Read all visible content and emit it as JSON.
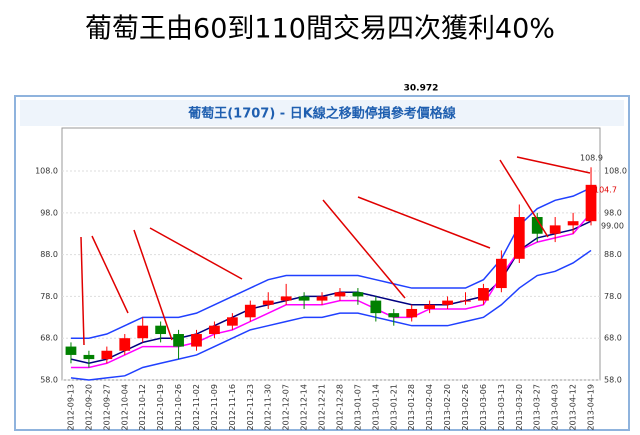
{
  "page_title": "葡萄王由60到110間交易四次獲利40%",
  "top_value": "30.972",
  "chart_data": {
    "type": "candlestick",
    "title": "葡萄王(1707) - 日K線之移動停損參考價格線",
    "x": [
      "2012-09-13",
      "2012-09-20",
      "2012-09-27",
      "2012-10-04",
      "2012-10-12",
      "2012-10-19",
      "2012-10-26",
      "2012-11-02",
      "2012-11-09",
      "2012-11-16",
      "2012-11-23",
      "2012-11-30",
      "2012-12-07",
      "2012-12-14",
      "2012-12-21",
      "2012-12-28",
      "2013-01-07",
      "2013-01-14",
      "2013-01-21",
      "2013-01-28",
      "2013-02-04",
      "2013-02-20",
      "2013-02-26",
      "2013-03-06",
      "2013-03-13",
      "2013-03-20",
      "2013-03-27",
      "2013-04-03",
      "2013-04-12",
      "2013-04-19"
    ],
    "open": [
      66,
      64,
      63,
      65,
      68,
      71,
      69,
      66,
      69,
      71,
      73,
      76,
      77,
      78,
      77,
      78,
      79,
      77,
      74,
      73,
      75,
      76,
      77,
      77,
      80,
      87,
      97,
      93,
      95,
      96
    ],
    "high": [
      67,
      65,
      66,
      69,
      73,
      72,
      70,
      70,
      72,
      74,
      77,
      79,
      81,
      79,
      79,
      80,
      80,
      78,
      75,
      76,
      77,
      78,
      79,
      81,
      89,
      100,
      98,
      97,
      98,
      108.9
    ],
    "low": [
      62,
      61,
      62,
      64,
      67,
      67,
      63,
      65,
      68,
      70,
      72,
      75,
      76,
      75,
      76,
      77,
      76,
      72,
      71,
      72,
      74,
      75,
      76,
      76,
      79,
      86,
      91,
      91,
      93,
      95
    ],
    "close": [
      64,
      63,
      65,
      68,
      71,
      69,
      66,
      69,
      71,
      73,
      76,
      77,
      78,
      77,
      78,
      79,
      78,
      74,
      73,
      75,
      76,
      77,
      77,
      80,
      87,
      97,
      93,
      95,
      96,
      104.7
    ],
    "up_color": "#ff0000",
    "down_color": "#008000",
    "lines": [
      {
        "color": "#2040ff",
        "values": [
          68,
          68,
          69,
          71,
          73,
          73,
          73,
          74,
          76,
          78,
          80,
          82,
          83,
          83,
          83,
          83,
          83,
          82,
          81,
          80,
          80,
          80,
          80,
          82,
          87,
          95,
          99,
          101,
          102,
          104
        ]
      },
      {
        "color": "#000080",
        "values": [
          63,
          62,
          63,
          65,
          67,
          68,
          68,
          69,
          71,
          73,
          75,
          76,
          77,
          78,
          78,
          79,
          79,
          78,
          77,
          76,
          76,
          76,
          77,
          78,
          82,
          89,
          92,
          93,
          94,
          96
        ]
      },
      {
        "color": "#2040ff",
        "values": [
          58.5,
          58,
          58.5,
          59,
          61,
          62,
          63,
          64,
          66,
          68,
          70,
          71,
          72,
          73,
          73,
          74,
          74,
          73,
          72,
          71,
          71,
          71,
          72,
          73,
          76,
          80,
          83,
          84,
          86,
          89
        ]
      },
      {
        "color": "#ff00ff",
        "values": [
          61,
          61,
          62,
          64,
          66,
          66,
          66,
          67,
          69,
          70,
          72,
          74,
          76,
          76,
          76,
          77,
          77,
          75,
          73,
          73,
          75,
          75,
          75,
          76,
          83,
          89,
          91,
          92,
          93,
          98
        ]
      }
    ],
    "ylim": [
      58,
      118.3
    ],
    "yticks": [
      {
        "value": 58,
        "label": "58.0"
      },
      {
        "value": 68,
        "label": "68.0"
      },
      {
        "value": 78,
        "label": "78.0"
      },
      {
        "value": 88,
        "label": "88.0"
      },
      {
        "value": 98,
        "label": "98.0"
      },
      {
        "value": 108,
        "label": "108.0"
      }
    ],
    "grid": true,
    "annotations": [
      "108.9",
      "104.7",
      "99.00"
    ]
  }
}
